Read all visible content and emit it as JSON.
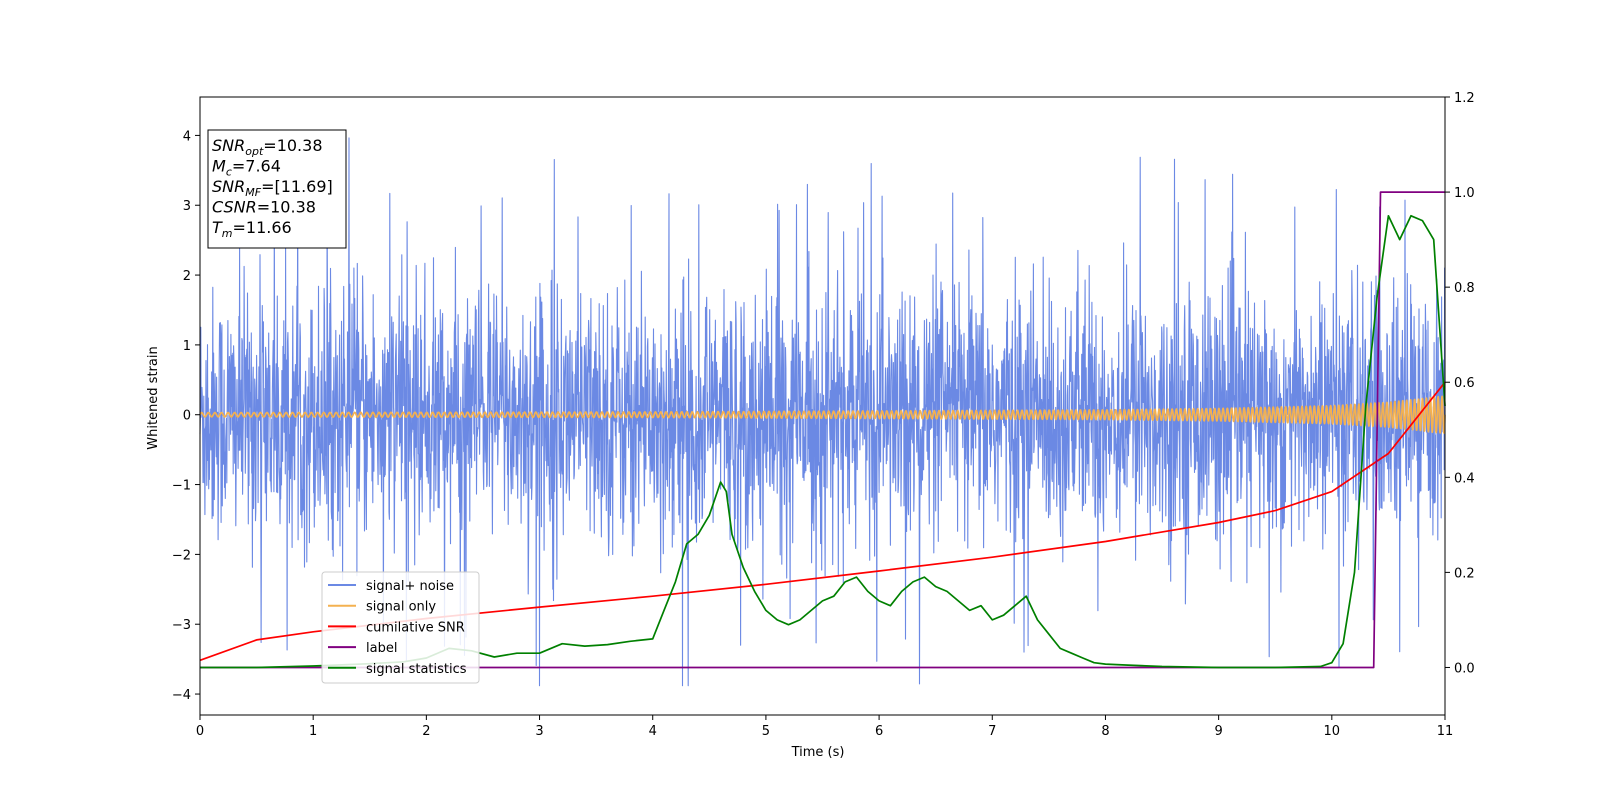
{
  "chart_data": {
    "type": "line",
    "xlabel": "Time (s)",
    "ylabel": "Whitened strain",
    "xlim": [
      0,
      11
    ],
    "ylim_left": [
      -4.3,
      4.55
    ],
    "ylim_right": [
      -0.1,
      1.2
    ],
    "xticks": [
      "0",
      "1",
      "2",
      "3",
      "4",
      "5",
      "6",
      "7",
      "8",
      "9",
      "10",
      "11"
    ],
    "yticks_left": [
      "−4",
      "−3",
      "−2",
      "−1",
      "0",
      "1",
      "2",
      "3",
      "4"
    ],
    "yticks_right": [
      "0.0",
      "0.2",
      "0.4",
      "0.6",
      "0.8",
      "1.0",
      "1.2"
    ],
    "grid": false,
    "legend_position": "lower-left",
    "annotation": {
      "lines": [
        {
          "sym": "SNR",
          "sub": "opt",
          "val": "=10.38"
        },
        {
          "sym": "M",
          "sub": "c",
          "val": "=7.64"
        },
        {
          "sym": "SNR",
          "sub": "MF",
          "val": "=[11.69]"
        },
        {
          "sym": "CSNR",
          "sub": "",
          "val": "=10.38"
        },
        {
          "sym": "T",
          "sub": "m",
          "val": "=11.66"
        }
      ]
    },
    "series": [
      {
        "name": "signal+ noise",
        "color": "#6b89e4",
        "axis": "left",
        "kind": "noise",
        "description_values": {
          "typical_sigma": 0.9,
          "max": 4.17,
          "min": -3.88
        }
      },
      {
        "name": "signal only",
        "color": "#f4b150",
        "axis": "left",
        "kind": "chirp",
        "envelope": {
          "x": [
            0,
            4,
            8,
            9,
            10,
            10.5,
            11
          ],
          "amp": [
            0.03,
            0.04,
            0.07,
            0.09,
            0.13,
            0.18,
            0.27
          ]
        }
      },
      {
        "name": "cumilative SNR",
        "color": "#ff0000",
        "axis": "right",
        "x": [
          0,
          0.5,
          1,
          2,
          3,
          4,
          5,
          6,
          7,
          8,
          9,
          9.5,
          10,
          10.5,
          11
        ],
        "y": [
          0.015,
          0.058,
          0.075,
          0.103,
          0.127,
          0.15,
          0.175,
          0.203,
          0.232,
          0.265,
          0.305,
          0.33,
          0.37,
          0.45,
          0.6
        ]
      },
      {
        "name": "label",
        "color": "#800080",
        "axis": "right",
        "x": [
          0,
          10.37,
          10.43,
          11
        ],
        "y": [
          0,
          0,
          1,
          1
        ]
      },
      {
        "name": "signal statistics",
        "color": "#008000",
        "axis": "right",
        "x": [
          0,
          0.5,
          1,
          1.5,
          1.8,
          2.0,
          2.2,
          2.4,
          2.6,
          2.8,
          3.0,
          3.2,
          3.4,
          3.6,
          3.8,
          4.0,
          4.1,
          4.2,
          4.3,
          4.4,
          4.5,
          4.6,
          4.65,
          4.7,
          4.8,
          4.9,
          5.0,
          5.1,
          5.2,
          5.3,
          5.4,
          5.5,
          5.6,
          5.7,
          5.8,
          5.9,
          6.0,
          6.1,
          6.2,
          6.3,
          6.4,
          6.5,
          6.6,
          6.7,
          6.8,
          6.9,
          7.0,
          7.1,
          7.2,
          7.3,
          7.4,
          7.5,
          7.6,
          7.7,
          7.8,
          7.9,
          8.0,
          8.2,
          8.5,
          9.0,
          9.5,
          9.9,
          10.0,
          10.1,
          10.2,
          10.3,
          10.4,
          10.5,
          10.6,
          10.7,
          10.8,
          10.9,
          11.0
        ],
        "y": [
          0,
          0,
          0.003,
          0.008,
          0.012,
          0.02,
          0.04,
          0.035,
          0.022,
          0.03,
          0.03,
          0.05,
          0.045,
          0.048,
          0.055,
          0.06,
          0.12,
          0.18,
          0.26,
          0.28,
          0.32,
          0.39,
          0.37,
          0.28,
          0.21,
          0.16,
          0.12,
          0.1,
          0.09,
          0.1,
          0.12,
          0.14,
          0.15,
          0.18,
          0.19,
          0.16,
          0.14,
          0.13,
          0.16,
          0.18,
          0.19,
          0.17,
          0.16,
          0.14,
          0.12,
          0.13,
          0.1,
          0.11,
          0.13,
          0.15,
          0.1,
          0.07,
          0.04,
          0.03,
          0.02,
          0.01,
          0.007,
          0.005,
          0.002,
          0,
          0,
          0.002,
          0.01,
          0.05,
          0.2,
          0.55,
          0.78,
          0.95,
          0.9,
          0.95,
          0.94,
          0.9,
          0.55
        ]
      }
    ]
  }
}
